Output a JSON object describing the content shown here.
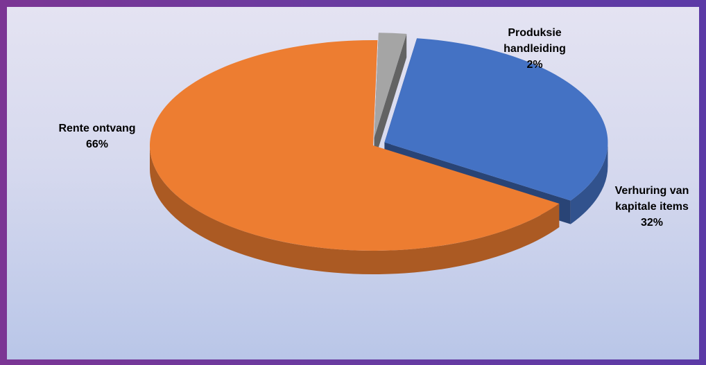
{
  "chart_data": {
    "type": "pie",
    "title": "",
    "three_d": true,
    "slices": [
      {
        "name": "Produksie handleiding",
        "label_lines": [
          "Produksie",
          "handleiding",
          "2%"
        ],
        "value": 2,
        "color": "#a5a5a5",
        "exploded": true
      },
      {
        "name": "Verhuring van kapitale items",
        "label_lines": [
          "Verhuring van",
          "kapitale items",
          "32%"
        ],
        "value": 32,
        "color": "#4472c4",
        "exploded": true
      },
      {
        "name": "Rente ontvang",
        "label_lines": [
          "Rente ontvang",
          "66%"
        ],
        "value": 66,
        "color": "#ed7d31",
        "exploded": false
      }
    ],
    "legend": "none",
    "data_labels": "outside"
  }
}
